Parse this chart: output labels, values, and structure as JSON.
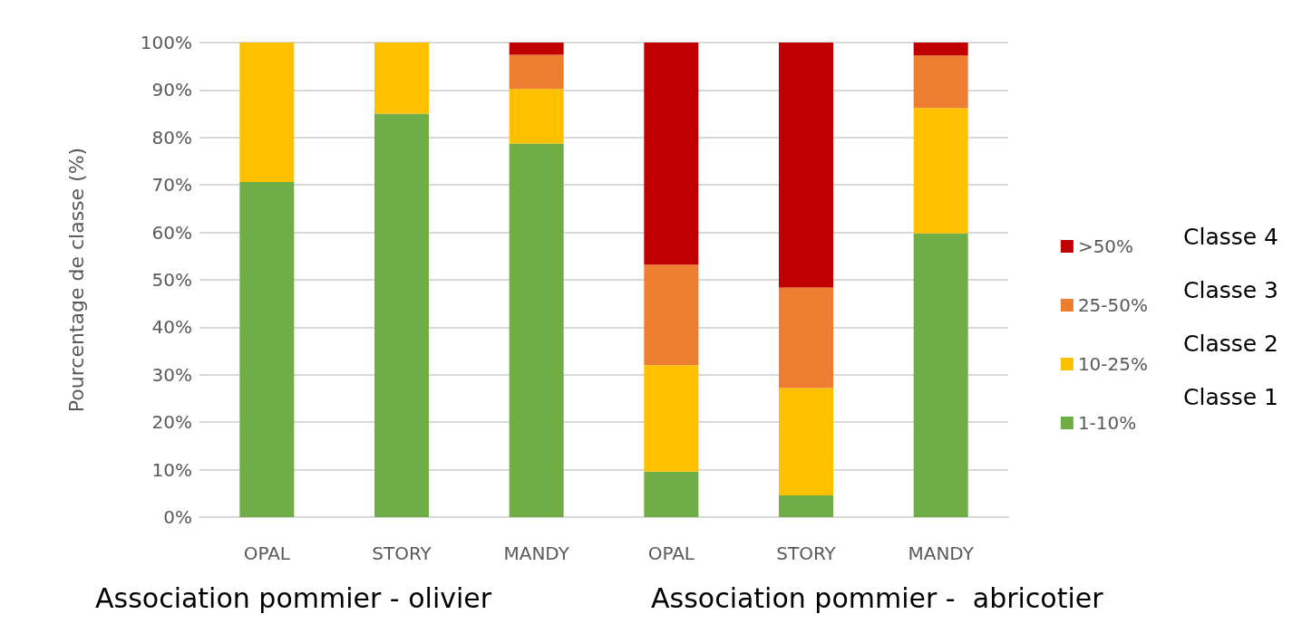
{
  "chart_data": {
    "type": "bar",
    "stacked": true,
    "ylabel": "Pourcentage de classe (%)",
    "categories": [
      "OPAL",
      "STORY",
      "MANDY",
      "OPAL",
      "STORY",
      "MANDY"
    ],
    "series": [
      {
        "name": "1-10%",
        "color": "#70ad47",
        "values": [
          70.6,
          85.0,
          78.7,
          9.6,
          4.6,
          59.8
        ]
      },
      {
        "name": "10-25%",
        "color": "#ffc000",
        "values": [
          29.4,
          15.0,
          11.5,
          22.4,
          22.6,
          26.4
        ]
      },
      {
        "name": "25-50%",
        "color": "#ed7d31",
        "values": [
          0,
          0,
          7.2,
          21.2,
          21.2,
          11.1
        ]
      },
      {
        "name": ">50%",
        "color": "#c00000",
        "values": [
          0,
          0,
          2.6,
          46.8,
          51.6,
          2.7
        ]
      }
    ],
    "ylim": [
      0,
      100
    ],
    "yticks": [
      {
        "value": 0,
        "label": "0%"
      },
      {
        "value": 10,
        "label": "10%"
      },
      {
        "value": 20,
        "label": "20%"
      },
      {
        "value": 30,
        "label": "30%"
      },
      {
        "value": 40,
        "label": "40%"
      },
      {
        "value": 50,
        "label": "50%"
      },
      {
        "value": 60,
        "label": "60%"
      },
      {
        "value": 70,
        "label": "70%"
      },
      {
        "value": 80,
        "label": "80%"
      },
      {
        "value": 90,
        "label": "90%"
      },
      {
        "value": 100,
        "label": "100%"
      }
    ],
    "grid": "y",
    "legend": "right",
    "annotations": [
      "Association pommier - olivier",
      "Association pommier -  abricotier",
      "Classe 1",
      "Classe 2",
      "Classe 3",
      "Classe 4"
    ]
  }
}
